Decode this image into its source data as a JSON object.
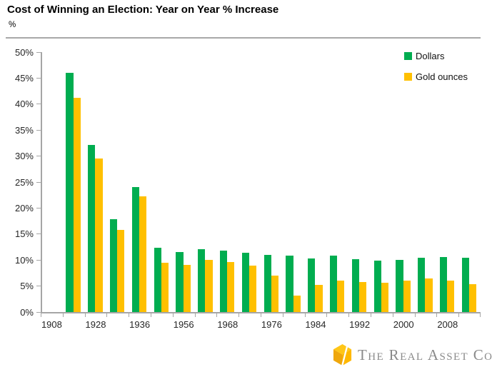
{
  "header": {
    "title": "Cost of Winning an Election: Year on Year % Increase",
    "subtitle": "%"
  },
  "logo": {
    "text": "The Real Asset Co",
    "cube_colors": [
      "#FFC617",
      "#EFA70C",
      "#FFB800"
    ]
  },
  "chart_data": {
    "type": "bar",
    "title": "Cost of Winning an Election: Year on Year % Increase",
    "ylabel": "%",
    "xlabel": "",
    "ylim": [
      0,
      50
    ],
    "ytick_step": 5,
    "ytick_labels": [
      "0%",
      "5%",
      "10%",
      "15%",
      "20%",
      "25%",
      "30%",
      "35%",
      "40%",
      "45%",
      "50%"
    ],
    "grid": false,
    "legend_position": "top-right",
    "categories": [
      "1908",
      "",
      "1928",
      "",
      "1936",
      "",
      "1956",
      "",
      "1968",
      "",
      "1976",
      "",
      "1984",
      "",
      "1992",
      "",
      "2000",
      "",
      "2008",
      ""
    ],
    "visible_x_tick_labels": [
      "1908",
      "1928",
      "1936",
      "1956",
      "1968",
      "1976",
      "1984",
      "1992",
      "2000",
      "2008"
    ],
    "series": [
      {
        "name": "Dollars",
        "color": "#00AD50",
        "values": [
          null,
          46.0,
          32.2,
          17.8,
          24.1,
          12.4,
          11.6,
          12.1,
          11.8,
          11.4,
          11.0,
          10.8,
          10.3,
          10.9,
          10.2,
          9.9,
          10.0,
          10.4,
          10.6,
          10.4
        ]
      },
      {
        "name": "Gold ounces",
        "color": "#FFC000",
        "values": [
          null,
          41.2,
          29.5,
          15.8,
          22.3,
          9.5,
          9.0,
          10.0,
          9.6,
          8.9,
          7.0,
          3.2,
          5.2,
          6.0,
          5.8,
          5.6,
          6.1,
          6.5,
          6.0,
          5.4
        ]
      }
    ]
  }
}
